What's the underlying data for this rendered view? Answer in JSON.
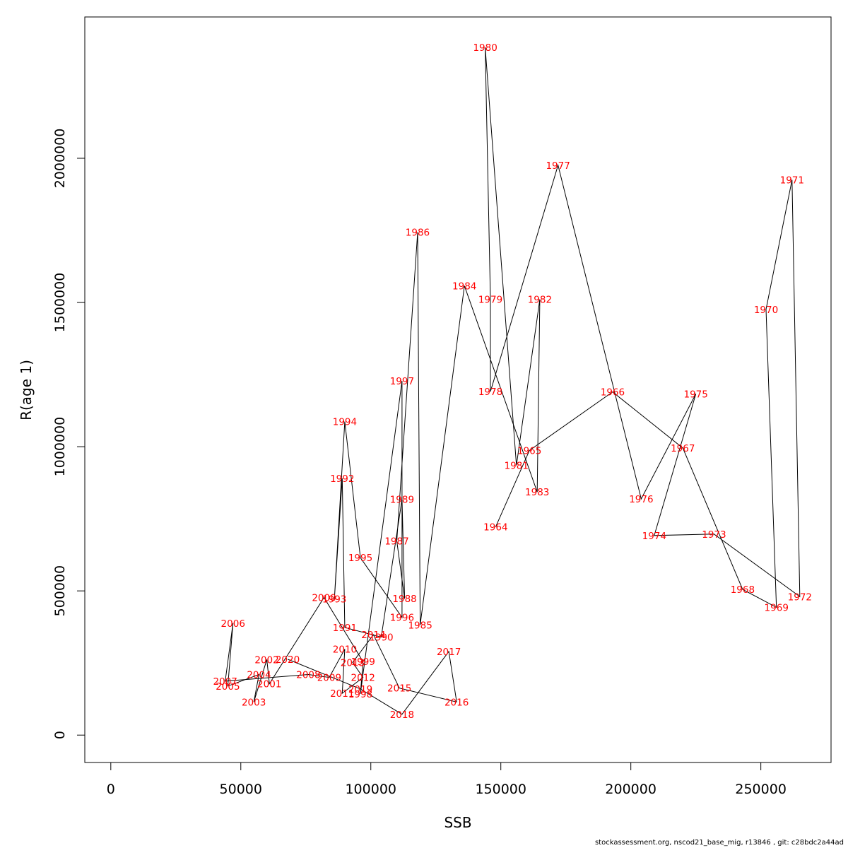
{
  "chart_data": {
    "type": "line",
    "title": "",
    "xlabel": "SSB",
    "ylabel": "R(age 1)",
    "xlim": [
      -10000,
      277000
    ],
    "ylim": [
      -95000,
      2490000
    ],
    "xticks": [
      0,
      50000,
      100000,
      150000,
      200000,
      250000
    ],
    "xtick_labels": [
      "0",
      "50000",
      "100000",
      "150000",
      "200000",
      "250000"
    ],
    "yticks": [
      0,
      500000,
      1000000,
      1500000,
      2000000
    ],
    "ytick_labels": [
      "0",
      "500000",
      "1000000",
      "1500000",
      "2000000"
    ],
    "grid": false,
    "legend": "none",
    "label_color": "#ff0000",
    "line_color": "#000000",
    "points": [
      {
        "year": "1964",
        "x": 148000,
        "y": 722000
      },
      {
        "year": "1965",
        "x": 161000,
        "y": 987000
      },
      {
        "year": "1966",
        "x": 193000,
        "y": 1190000
      },
      {
        "year": "1967",
        "x": 220000,
        "y": 995000
      },
      {
        "year": "1968",
        "x": 243000,
        "y": 505000
      },
      {
        "year": "1969",
        "x": 256000,
        "y": 443000
      },
      {
        "year": "1970",
        "x": 252000,
        "y": 1476000
      },
      {
        "year": "1971",
        "x": 262000,
        "y": 1925000
      },
      {
        "year": "1972",
        "x": 265000,
        "y": 480000
      },
      {
        "year": "1973",
        "x": 232000,
        "y": 697000
      },
      {
        "year": "1974",
        "x": 209000,
        "y": 692000
      },
      {
        "year": "1975",
        "x": 225000,
        "y": 1183000
      },
      {
        "year": "1976",
        "x": 204000,
        "y": 819000
      },
      {
        "year": "1977",
        "x": 172000,
        "y": 1976000
      },
      {
        "year": "1978",
        "x": 146000,
        "y": 1191000
      },
      {
        "year": "1979",
        "x": 146000,
        "y": 1511000
      },
      {
        "year": "1980",
        "x": 144000,
        "y": 2385000
      },
      {
        "year": "1981",
        "x": 156000,
        "y": 935000
      },
      {
        "year": "1982",
        "x": 165000,
        "y": 1511000
      },
      {
        "year": "1983",
        "x": 164000,
        "y": 843000
      },
      {
        "year": "1984",
        "x": 136000,
        "y": 1558000
      },
      {
        "year": "1985",
        "x": 119000,
        "y": 382000
      },
      {
        "year": "1986",
        "x": 118000,
        "y": 1744000
      },
      {
        "year": "1987",
        "x": 110000,
        "y": 673000
      },
      {
        "year": "1988",
        "x": 113000,
        "y": 473000
      },
      {
        "year": "1989",
        "x": 112000,
        "y": 818000
      },
      {
        "year": "1990",
        "x": 104000,
        "y": 340000
      },
      {
        "year": "1991",
        "x": 90000,
        "y": 373000
      },
      {
        "year": "1992",
        "x": 89000,
        "y": 890000
      },
      {
        "year": "1993",
        "x": 86000,
        "y": 472000
      },
      {
        "year": "1994",
        "x": 90000,
        "y": 1087000
      },
      {
        "year": "1995",
        "x": 96000,
        "y": 615000
      },
      {
        "year": "1996",
        "x": 112000,
        "y": 408000
      },
      {
        "year": "1997",
        "x": 112000,
        "y": 1228000
      },
      {
        "year": "1998",
        "x": 96000,
        "y": 143000
      },
      {
        "year": "1999",
        "x": 97000,
        "y": 255000
      },
      {
        "year": "2000",
        "x": 82000,
        "y": 477000
      },
      {
        "year": "2001",
        "x": 61000,
        "y": 178000
      },
      {
        "year": "2002",
        "x": 60000,
        "y": 262000
      },
      {
        "year": "2003",
        "x": 55000,
        "y": 115000
      },
      {
        "year": "2004",
        "x": 57000,
        "y": 210000
      },
      {
        "year": "2005",
        "x": 45000,
        "y": 170000
      },
      {
        "year": "2006",
        "x": 47000,
        "y": 388000
      },
      {
        "year": "2007",
        "x": 44000,
        "y": 187000
      },
      {
        "year": "2008",
        "x": 76000,
        "y": 210000
      },
      {
        "year": "2009",
        "x": 84000,
        "y": 200000
      },
      {
        "year": "2010",
        "x": 90000,
        "y": 298000
      },
      {
        "year": "2011",
        "x": 89000,
        "y": 145000
      },
      {
        "year": "2012",
        "x": 97000,
        "y": 200000
      },
      {
        "year": "2013",
        "x": 93000,
        "y": 252000
      },
      {
        "year": "2014",
        "x": 101000,
        "y": 348000
      },
      {
        "year": "2015",
        "x": 111000,
        "y": 163000
      },
      {
        "year": "2016",
        "x": 133000,
        "y": 115000
      },
      {
        "year": "2017",
        "x": 130000,
        "y": 290000
      },
      {
        "year": "2018",
        "x": 112000,
        "y": 72000
      },
      {
        "year": "2019",
        "x": 96000,
        "y": 160000
      },
      {
        "year": "2020",
        "x": 68000,
        "y": 263000
      }
    ]
  },
  "footer": "stockassessment.org, nscod21_base_mig, r13846 , git: c28bdc2a44ad"
}
